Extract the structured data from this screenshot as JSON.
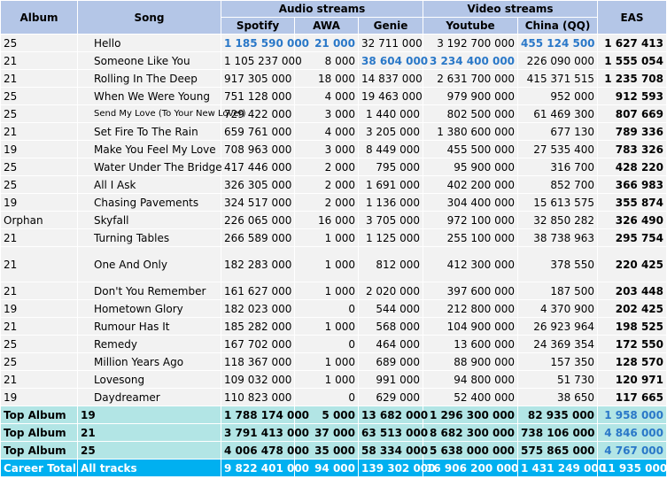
{
  "headers": {
    "album": "Album",
    "song": "Song",
    "audio_group": "Audio streams",
    "video_group": "Video streams",
    "spotify": "Spotify",
    "awa": "AWA",
    "genie": "Genie",
    "youtube": "Youtube",
    "china": "China (QQ)",
    "eas": "EAS"
  },
  "rows": [
    {
      "album": "25",
      "song": "Hello",
      "spotify": "1 185 590 000",
      "awa": "21 000",
      "genie": "32 711 000",
      "youtube": "3 192 700 000",
      "china": "455 124 500",
      "eas": "1 627 413",
      "highlight": [
        "spotify",
        "awa",
        "china"
      ]
    },
    {
      "album": "21",
      "song": "Someone Like You",
      "spotify": "1 105 237 000",
      "awa": "8 000",
      "genie": "38 604 000",
      "youtube": "3 234 400 000",
      "china": "226 090 000",
      "eas": "1 555 054",
      "highlight": [
        "genie",
        "youtube"
      ]
    },
    {
      "album": "21",
      "song": "Rolling In The Deep",
      "spotify": "917 305 000",
      "awa": "18 000",
      "genie": "14 837 000",
      "youtube": "2 631 700 000",
      "china": "415 371 515",
      "eas": "1 235 708"
    },
    {
      "album": "25",
      "song": "When We Were Young",
      "spotify": "751 128 000",
      "awa": "4 000",
      "genie": "19 463 000",
      "youtube": "979 900 000",
      "china": "952 000",
      "eas": "912 593"
    },
    {
      "album": "25",
      "song": "Send My Love (To Your New Lover)",
      "spotify": "729 422 000",
      "awa": "3 000",
      "genie": "1 440 000",
      "youtube": "802 500 000",
      "china": "61 469 300",
      "eas": "807 669",
      "small": true
    },
    {
      "album": "21",
      "song": "Set Fire To The Rain",
      "spotify": "659 761 000",
      "awa": "4 000",
      "genie": "3 205 000",
      "youtube": "1 380 600 000",
      "china": "677 130",
      "eas": "789 336"
    },
    {
      "album": "19",
      "song": "Make You Feel My Love",
      "spotify": "708 963 000",
      "awa": "3 000",
      "genie": "8 449 000",
      "youtube": "455 500 000",
      "china": "27 535 400",
      "eas": "783 326"
    },
    {
      "album": "25",
      "song": "Water Under The Bridge",
      "spotify": "417 446 000",
      "awa": "2 000",
      "genie": "795 000",
      "youtube": "95 900 000",
      "china": "316 700",
      "eas": "428 220"
    },
    {
      "album": "25",
      "song": "All I Ask",
      "spotify": "326 305 000",
      "awa": "2 000",
      "genie": "1 691 000",
      "youtube": "402 200 000",
      "china": "852 700",
      "eas": "366 983"
    },
    {
      "album": "19",
      "song": "Chasing Pavements",
      "spotify": "324 517 000",
      "awa": "2 000",
      "genie": "1 136 000",
      "youtube": "304 400 000",
      "china": "15 613 575",
      "eas": "355 874"
    },
    {
      "album": "Orphan",
      "song": "Skyfall",
      "spotify": "226 065 000",
      "awa": "16 000",
      "genie": "3 705 000",
      "youtube": "972 100 000",
      "china": "32 850 282",
      "eas": "326 490"
    },
    {
      "album": "21",
      "song": "Turning Tables",
      "spotify": "266 589 000",
      "awa": "1 000",
      "genie": "1 125 000",
      "youtube": "255 100 000",
      "china": "38 738 963",
      "eas": "295 754"
    },
    {
      "album": "21",
      "song": "One And Only",
      "spotify": "182 283 000",
      "awa": "1 000",
      "genie": "812 000",
      "youtube": "412 300 000",
      "china": "378 550",
      "eas": "220 425",
      "tall": true
    },
    {
      "album": "21",
      "song": "Don't You Remember",
      "spotify": "161 627 000",
      "awa": "1 000",
      "genie": "2 020 000",
      "youtube": "397 600 000",
      "china": "187 500",
      "eas": "203 448"
    },
    {
      "album": "19",
      "song": "Hometown Glory",
      "spotify": "182 023 000",
      "awa": "0",
      "genie": "544 000",
      "youtube": "212 800 000",
      "china": "4 370 900",
      "eas": "202 425"
    },
    {
      "album": "21",
      "song": "Rumour Has It",
      "spotify": "185 282 000",
      "awa": "1 000",
      "genie": "568 000",
      "youtube": "104 900 000",
      "china": "26 923 964",
      "eas": "198 525"
    },
    {
      "album": "25",
      "song": "Remedy",
      "spotify": "167 702 000",
      "awa": "0",
      "genie": "464 000",
      "youtube": "13 600 000",
      "china": "24 369 354",
      "eas": "172 550"
    },
    {
      "album": "25",
      "song": "Million Years Ago",
      "spotify": "118 367 000",
      "awa": "1 000",
      "genie": "689 000",
      "youtube": "88 900 000",
      "china": "157 350",
      "eas": "128 570"
    },
    {
      "album": "21",
      "song": "Lovesong",
      "spotify": "109 032 000",
      "awa": "1 000",
      "genie": "991 000",
      "youtube": "94 800 000",
      "china": "51 730",
      "eas": "120 971"
    },
    {
      "album": "19",
      "song": "Daydreamer",
      "spotify": "110 823 000",
      "awa": "0",
      "genie": "629 000",
      "youtube": "52 400 000",
      "china": "38 650",
      "eas": "117 665"
    }
  ],
  "totals": [
    {
      "album": "Top Album",
      "song": "19",
      "spotify": "1 788 174 000",
      "awa": "5 000",
      "genie": "13 682 000",
      "youtube": "1 296 300 000",
      "china": "82 935 000",
      "eas": "1 958 000"
    },
    {
      "album": "Top Album",
      "song": "21",
      "spotify": "3 791 413 000",
      "awa": "37 000",
      "genie": "63 513 000",
      "youtube": "8 682 300 000",
      "china": "738 106 000",
      "eas": "4 846 000"
    },
    {
      "album": "Top Album",
      "song": "25",
      "spotify": "4 006 478 000",
      "awa": "35 000",
      "genie": "58 334 000",
      "youtube": "5 638 000 000",
      "china": "575 865 000",
      "eas": "4 767 000"
    }
  ],
  "career": {
    "album": "Career Total",
    "song": "All tracks",
    "spotify": "9 822 401 000",
    "awa": "94 000",
    "genie": "139 302 000",
    "youtube": "16 906 200 000",
    "china": "1 431 249 000",
    "eas": "11 935 000"
  },
  "colors": {
    "header_bg": "#b4c6e7",
    "row_bg": "#f2f2f2",
    "highlight_text": "#2a78c8",
    "album_total_bg": "#b2e5e5",
    "career_bg": "#00b0f0"
  }
}
